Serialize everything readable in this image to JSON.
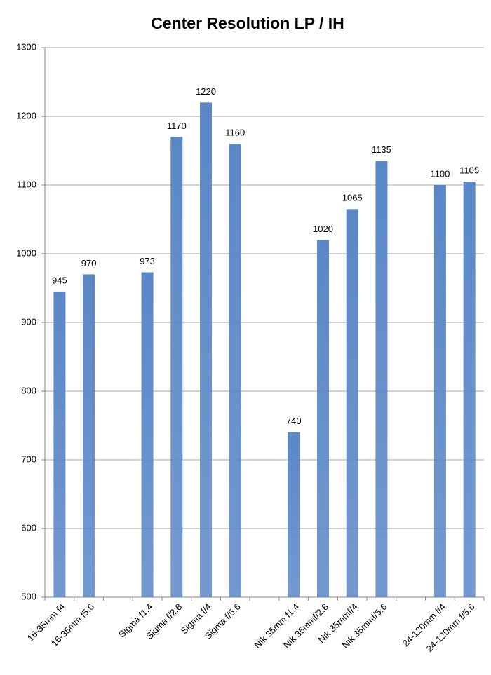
{
  "chart_data": {
    "type": "bar",
    "title": "Center Resolution LP / IH",
    "categories": [
      "16-35mm  f4",
      "16-35mm  f5.6",
      null,
      "Sigma f1.4",
      "Sigma f/2.8",
      "Sigma f/4",
      "Sigma f/5.6",
      null,
      "Nik 35mm f1.4",
      "Nik 35mmf/2.8",
      "Nik 35mmf/4",
      "Nik 35mmf/5.6",
      null,
      "24-120mm f/4",
      "24-120mm f/5.6"
    ],
    "values": [
      945,
      970,
      null,
      973,
      1170,
      1220,
      1160,
      null,
      740,
      1020,
      1065,
      1135,
      null,
      1100,
      1105
    ],
    "color": "#5b87c7",
    "ylim": [
      500,
      1300
    ],
    "yticks": [
      500,
      600,
      700,
      800,
      900,
      1000,
      1100,
      1200,
      1300
    ],
    "grid": true
  }
}
